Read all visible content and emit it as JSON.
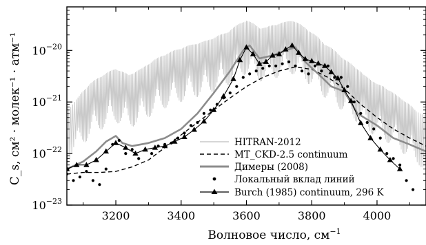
{
  "chart_data": {
    "type": "line",
    "xlabel": "Волновое число,  см",
    "xlabel_sup": "−1",
    "ylabel": "C_s, см² · молек⁻¹ · атм⁻¹",
    "xlim": [
      3050,
      4150
    ],
    "ylim": [
      1e-23,
      7e-20
    ],
    "yscale": "log",
    "legend_position": "lower-right",
    "x_ticks": [
      {
        "value": 3200,
        "label": "3200"
      },
      {
        "value": 3400,
        "label": "3400"
      },
      {
        "value": 3600,
        "label": "3600"
      },
      {
        "value": 3800,
        "label": "3800"
      },
      {
        "value": 4000,
        "label": "4000"
      }
    ],
    "y_ticks": [
      {
        "value": 1e-23,
        "base": "10",
        "exp": "−23"
      },
      {
        "value": 1e-22,
        "base": "10",
        "exp": "−22"
      },
      {
        "value": 1e-21,
        "base": "10",
        "exp": "−21"
      },
      {
        "value": 1e-20,
        "base": "10",
        "exp": "−20"
      }
    ],
    "series": [
      {
        "name": "HITRAN-2012",
        "style": "noisy-line",
        "color": "#c8c8c8",
        "x": [
          3050,
          3080,
          3100,
          3120,
          3140,
          3160,
          3180,
          3200,
          3220,
          3240,
          3260,
          3280,
          3300,
          3320,
          3340,
          3360,
          3380,
          3400,
          3420,
          3440,
          3460,
          3480,
          3500,
          3520,
          3540,
          3560,
          3580,
          3600,
          3620,
          3640,
          3660,
          3680,
          3700,
          3720,
          3740,
          3760,
          3780,
          3800,
          3820,
          3840,
          3860,
          3880,
          3900,
          3920,
          3940,
          3960,
          3980,
          4000,
          4020,
          4040,
          4060,
          4080,
          4100,
          4120,
          4150
        ],
        "y": [
          6e-22,
          1e-21,
          1.5e-21,
          2e-21,
          2.5e-21,
          3e-21,
          3.5e-21,
          4e-21,
          3.5e-21,
          3e-21,
          3.5e-21,
          4e-21,
          5e-21,
          6e-21,
          7e-21,
          8e-21,
          9e-21,
          1e-20,
          1.1e-20,
          1.2e-20,
          1.3e-20,
          1.4e-20,
          1.6e-20,
          1.8e-20,
          2e-20,
          2.5e-20,
          3e-20,
          3.5e-20,
          3e-20,
          2.5e-20,
          2.5e-20,
          2.8e-20,
          3e-20,
          3.2e-20,
          3.5e-20,
          3e-20,
          2.5e-20,
          2e-20,
          1.6e-20,
          1.2e-20,
          1e-20,
          8e-21,
          6e-21,
          5e-21,
          4e-21,
          3e-21,
          2.5e-21,
          2e-21,
          1.8e-21,
          1.5e-21,
          1.2e-21,
          1e-21,
          8e-22,
          6e-22,
          5e-22
        ]
      },
      {
        "name": "MT_CKD-2.5 continuum",
        "style": "dashed",
        "color": "#000000",
        "x": [
          3050,
          3100,
          3150,
          3200,
          3250,
          3300,
          3350,
          3400,
          3450,
          3500,
          3550,
          3600,
          3650,
          3700,
          3750,
          3800,
          3850,
          3900,
          3950,
          4000,
          4050,
          4100,
          4150
        ],
        "y": [
          4e-23,
          4.3e-23,
          4.3e-23,
          4.5e-23,
          5.5e-23,
          7.5e-23,
          1.3e-22,
          2.3e-22,
          4e-22,
          7e-22,
          1.2e-21,
          2e-21,
          3e-21,
          4e-21,
          4.8e-21,
          4.3e-21,
          3e-21,
          1.8e-21,
          9e-22,
          5e-22,
          3e-22,
          2e-22,
          1.4e-22
        ]
      },
      {
        "name": "Димеры (2008)",
        "style": "thick-line",
        "color": "#8c8c8c",
        "x": [
          3050,
          3100,
          3140,
          3170,
          3200,
          3220,
          3250,
          3300,
          3350,
          3400,
          3450,
          3500,
          3550,
          3590,
          3610,
          3640,
          3680,
          3720,
          3750,
          3780,
          3820,
          3860,
          3900,
          3940,
          4000,
          4050,
          4100,
          4150
        ],
        "y": [
          5e-23,
          7e-23,
          1.1e-22,
          1.7e-22,
          2.2e-22,
          1.6e-22,
          1.4e-22,
          1.6e-22,
          2e-22,
          3e-22,
          6e-22,
          1.5e-21,
          4e-21,
          1e-20,
          1.25e-20,
          7e-21,
          8e-21,
          1e-20,
          1.15e-20,
          6e-21,
          3.5e-21,
          2e-21,
          1.6e-21,
          6e-22,
          3.5e-22,
          2e-22,
          1.5e-22,
          1.1e-22
        ]
      },
      {
        "name": "Локальный вклад линий",
        "style": "points",
        "color": "#000000",
        "x": [
          3050,
          3070,
          3090,
          3110,
          3130,
          3150,
          3170,
          3190,
          3210,
          3230,
          3250,
          3270,
          3290,
          3310,
          3330,
          3350,
          3370,
          3390,
          3410,
          3430,
          3450,
          3470,
          3490,
          3510,
          3530,
          3550,
          3570,
          3590,
          3610,
          3630,
          3650,
          3670,
          3690,
          3710,
          3730,
          3750,
          3770,
          3790,
          3810,
          3830,
          3850,
          3870,
          3890,
          3910,
          3930,
          3950,
          3970,
          3990,
          4010,
          4030,
          4050,
          4070,
          4090,
          4110
        ],
        "y": [
          4e-23,
          3e-23,
          3.5e-23,
          4.5e-23,
          3e-23,
          2.5e-23,
          5e-23,
          1.5e-22,
          1.8e-22,
          1e-22,
          1.2e-22,
          8e-23,
          1.2e-22,
          1e-22,
          1.4e-22,
          1.5e-22,
          1.6e-22,
          2e-22,
          2.5e-22,
          3.5e-22,
          4e-22,
          6e-22,
          7e-22,
          9e-22,
          1.2e-21,
          1.5e-21,
          2e-21,
          3e-21,
          3.5e-21,
          4e-21,
          4.5e-21,
          5e-21,
          5e-21,
          5.5e-21,
          6e-21,
          5e-21,
          4e-21,
          3.5e-21,
          5e-21,
          4e-21,
          5e-21,
          3e-21,
          3e-21,
          2e-21,
          1e-21,
          6e-22,
          4e-22,
          3e-22,
          2e-22,
          1e-22,
          8e-23,
          6e-23,
          3e-23,
          2e-23
        ]
      },
      {
        "name": "Burch (1985) continuum, 296 K",
        "style": "line-triangles",
        "color": "#000000",
        "x": [
          3050,
          3080,
          3110,
          3140,
          3170,
          3200,
          3230,
          3260,
          3290,
          3320,
          3350,
          3380,
          3410,
          3440,
          3470,
          3500,
          3530,
          3560,
          3580,
          3600,
          3620,
          3640,
          3660,
          3680,
          3700,
          3720,
          3740,
          3760,
          3780,
          3800,
          3820,
          3840,
          3860,
          3880,
          3900,
          3920,
          3950,
          3980,
          4010,
          4040,
          4070
        ],
        "y": [
          5e-23,
          6e-23,
          6e-23,
          7.5e-23,
          1.1e-22,
          1.6e-22,
          1.3e-22,
          1e-22,
          1.2e-22,
          1.3e-22,
          1.4e-22,
          1.7e-22,
          2.1e-22,
          2.9e-22,
          4.2e-22,
          7e-22,
          1.3e-21,
          2.8e-21,
          6.5e-21,
          1.15e-20,
          8.5e-21,
          5.5e-21,
          6e-21,
          8e-21,
          8.5e-21,
          1.05e-20,
          1.25e-20,
          9e-21,
          6.8e-21,
          6.2e-21,
          5.6e-21,
          5e-21,
          3.8e-21,
          2.9e-21,
          1.7e-21,
          1.05e-21,
          3.9e-22,
          2e-22,
          1.2e-22,
          7.5e-23,
          5e-23
        ]
      }
    ]
  }
}
